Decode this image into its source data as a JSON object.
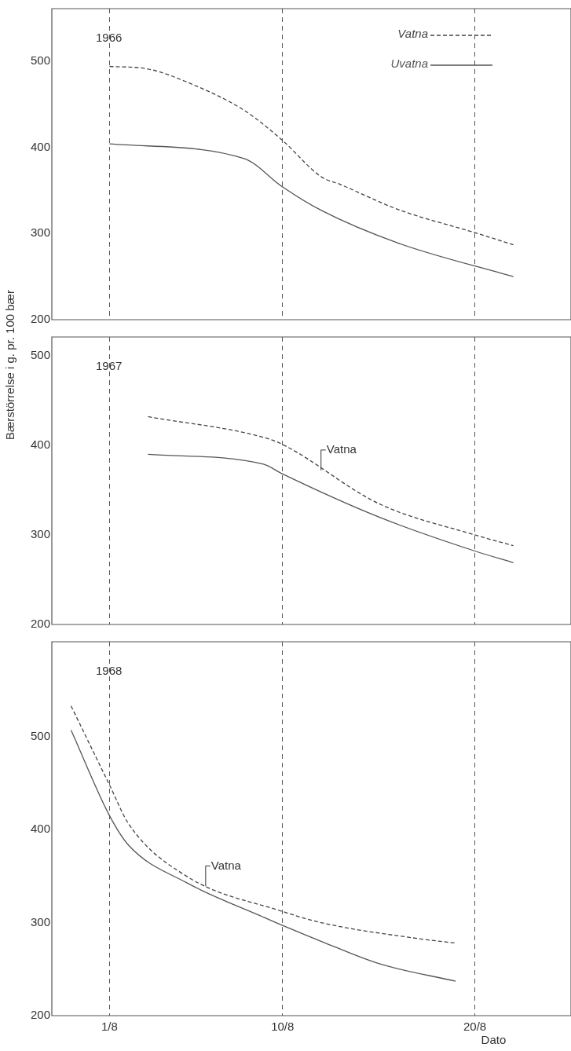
{
  "chart_data": [
    {
      "type": "line",
      "title": "1966",
      "xlim": [
        "--07-29",
        "--08-25"
      ],
      "xticks": [
        {
          "value": "--08-01",
          "label": null
        },
        {
          "value": "--08-10",
          "label": null
        },
        {
          "value": "--08-20",
          "label": null
        }
      ],
      "ylim": [
        200,
        561
      ],
      "yticks": [
        200,
        300,
        400,
        500
      ],
      "grid": "x",
      "tick_labels": "y",
      "legend": "top right",
      "marker": "none",
      "series": [
        {
          "name": "Vatna",
          "color": "#444444",
          "line_style": "dashed",
          "x": [
            "--08-01",
            "--08-03",
            "--08-05",
            "--08-08",
            "--08-10",
            "--08-12",
            "--08-13",
            "--08-16",
            "--08-20",
            "--08-22"
          ],
          "values": [
            494,
            491,
            476,
            443,
            408,
            366,
            357,
            328,
            301,
            287
          ]
        },
        {
          "name": "Uvatna",
          "color": "#555555",
          "line_style": "solid",
          "x": [
            "--08-01",
            "--08-08",
            "--08-10",
            "--08-12",
            "--08-16",
            "--08-22"
          ],
          "values": [
            404,
            387,
            354,
            327,
            289,
            250
          ]
        }
      ]
    },
    {
      "type": "line",
      "title": "1967",
      "ylabel": "Bærstörrelse i g. pr. 100 bær",
      "xlim": [
        "--07-29",
        "--08-25"
      ],
      "xticks": [
        {
          "value": "--08-01",
          "label": null
        },
        {
          "value": "--08-10",
          "label": null
        },
        {
          "value": "--08-20",
          "label": null
        }
      ],
      "ylim": [
        200,
        521
      ],
      "yticks": [
        200,
        300,
        400,
        500
      ],
      "grid": "x",
      "tick_labels": "y",
      "marker": "none",
      "annotations": [
        {
          "text": "Vatna",
          "x": "--08-12",
          "y": 372
        }
      ],
      "series": [
        {
          "color": "#444444",
          "line_style": "dashed",
          "x": [
            "--08-03",
            "--08-09",
            "--08-10",
            "--08-15",
            "--08-20",
            "--08-22"
          ],
          "values": [
            432,
            409,
            401,
            335,
            300,
            288
          ]
        },
        {
          "color": "#555555",
          "line_style": "solid",
          "x": [
            "--08-03",
            "--08-09",
            "--08-10",
            "--08-15",
            "--08-20",
            "--08-22"
          ],
          "values": [
            390,
            379,
            368,
            320,
            282,
            269
          ]
        }
      ]
    },
    {
      "type": "line",
      "title": "1968",
      "xlabel": "Dato",
      "xlim": [
        "--07-29",
        "--08-25"
      ],
      "xticks": [
        {
          "value": "--08-01",
          "label": "1/8"
        },
        {
          "value": "--08-10",
          "label": "10/8"
        },
        {
          "value": "--08-20",
          "label": "20/8"
        }
      ],
      "ylim": [
        200,
        602
      ],
      "yticks": [
        200,
        300,
        400,
        500
      ],
      "grid": "x",
      "marker": "none",
      "annotations": [
        {
          "text": "Vatna",
          "x": "--08-06",
          "y": 339
        }
      ],
      "series": [
        {
          "color": "#444444",
          "line_style": "dashed",
          "x": [
            "--07-30",
            "--08-01",
            "--08-02",
            "--08-05",
            "--08-10",
            "--08-12",
            "--08-17",
            "--08-19"
          ],
          "values": [
            533,
            448,
            406,
            350,
            312,
            300,
            283,
            278
          ]
        },
        {
          "color": "#555555",
          "line_style": "solid",
          "x": [
            "--07-30",
            "--08-01",
            "--08-02",
            "--08-05",
            "--08-09",
            "--08-10",
            "--08-12",
            "--08-15",
            "--08-19"
          ],
          "values": [
            507,
            415,
            383,
            343,
            306,
            297,
            280,
            256,
            237
          ]
        }
      ]
    }
  ]
}
